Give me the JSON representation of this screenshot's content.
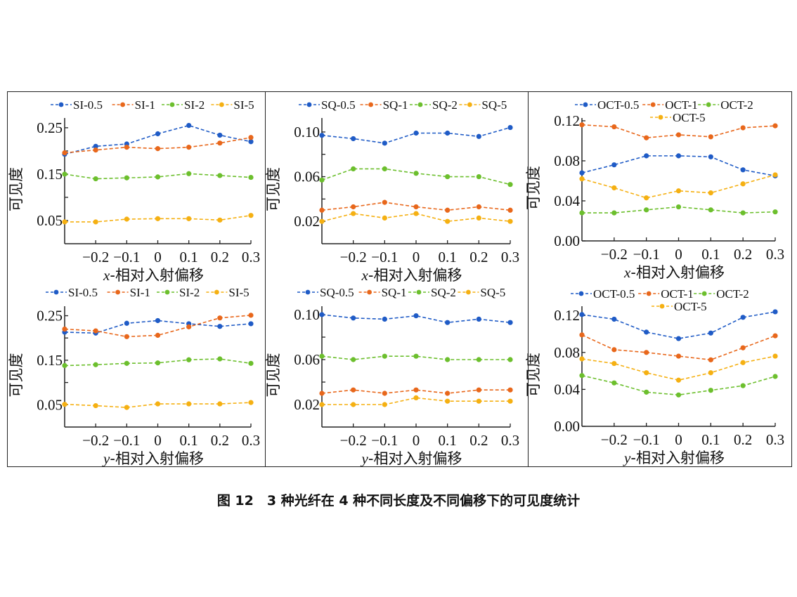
{
  "caption": {
    "figure_label": "图 12",
    "text": "3 种光纤在 4 种不同长度及不同偏移下的可见度统计"
  },
  "colors": {
    "series": [
      "#1f5bc6",
      "#e8671b",
      "#6cbf2d",
      "#f5b012"
    ],
    "axis": "#222222"
  },
  "chart_data": [
    {
      "type": "line",
      "id": "si-x",
      "xlabel": "x-相对入射偏移",
      "xlabel_var": "x",
      "ylabel": "可见度",
      "x": [
        -0.3,
        -0.2,
        -0.1,
        0,
        0.1,
        0.2,
        0.3
      ],
      "xticks": [
        -0.2,
        -0.1,
        0,
        0.1,
        0.2,
        0.3
      ],
      "xtick_labels": [
        "−0.2",
        "−0.1",
        "0",
        "0.1",
        "0.2",
        "0.3"
      ],
      "ylim": [
        0.0,
        0.265
      ],
      "yticks": [
        0.05,
        0.1,
        0.15,
        0.2,
        0.25
      ],
      "ytick_labels": [
        "0.05",
        "",
        "0.15",
        "",
        "0.25"
      ],
      "legend": "top",
      "legend_rows": 1,
      "series": [
        {
          "name": "SI-0.5",
          "values": [
            0.193,
            0.21,
            0.215,
            0.237,
            0.255,
            0.234,
            0.22
          ]
        },
        {
          "name": "SI-1",
          "values": [
            0.196,
            0.202,
            0.208,
            0.205,
            0.208,
            0.217,
            0.229
          ]
        },
        {
          "name": "SI-2",
          "values": [
            0.15,
            0.14,
            0.142,
            0.144,
            0.151,
            0.147,
            0.143
          ]
        },
        {
          "name": "SI-5",
          "values": [
            0.047,
            0.047,
            0.053,
            0.054,
            0.054,
            0.051,
            0.061
          ]
        }
      ]
    },
    {
      "type": "line",
      "id": "sq-x",
      "xlabel": "x-相对入射偏移",
      "xlabel_var": "x",
      "ylabel": "可见度",
      "x": [
        -0.3,
        -0.2,
        -0.1,
        0,
        0.1,
        0.2,
        0.3
      ],
      "xticks": [
        -0.2,
        -0.1,
        0,
        0.1,
        0.2,
        0.3
      ],
      "xtick_labels": [
        "−0.2",
        "−0.1",
        "0",
        "0.1",
        "0.2",
        "0.3"
      ],
      "ylim": [
        0.0,
        0.11
      ],
      "yticks": [
        0.02,
        0.04,
        0.06,
        0.08,
        0.1
      ],
      "ytick_labels": [
        "0.02",
        "",
        "0.06",
        "",
        "0.10"
      ],
      "legend": "top",
      "legend_rows": 1,
      "series": [
        {
          "name": "SQ-0.5",
          "values": [
            0.097,
            0.094,
            0.09,
            0.099,
            0.099,
            0.096,
            0.104
          ]
        },
        {
          "name": "SQ-1",
          "values": [
            0.03,
            0.033,
            0.037,
            0.033,
            0.03,
            0.033,
            0.03
          ]
        },
        {
          "name": "SQ-2",
          "values": [
            0.057,
            0.067,
            0.067,
            0.063,
            0.06,
            0.06,
            0.053
          ]
        },
        {
          "name": "SQ-5",
          "values": [
            0.02,
            0.027,
            0.023,
            0.027,
            0.02,
            0.023,
            0.02
          ]
        }
      ]
    },
    {
      "type": "line",
      "id": "oct-x",
      "xlabel": "x-相对入射偏移",
      "xlabel_var": "x",
      "ylabel": "可见度",
      "x": [
        -0.3,
        -0.2,
        -0.1,
        0,
        0.1,
        0.2,
        0.3
      ],
      "xticks": [
        -0.2,
        -0.1,
        0,
        0.1,
        0.2,
        0.3
      ],
      "xtick_labels": [
        "−0.2",
        "−0.1",
        "0",
        "0.1",
        "0.2",
        "0.3"
      ],
      "ylim": [
        0.0,
        0.12
      ],
      "yticks": [
        0.0,
        0.04,
        0.08,
        0.12
      ],
      "ytick_labels": [
        "0.00",
        "0.04",
        "0.08",
        "0.12"
      ],
      "legend": "top",
      "legend_rows": 2,
      "series": [
        {
          "name": "OCT-0.5",
          "values": [
            0.068,
            0.076,
            0.085,
            0.085,
            0.084,
            0.071,
            0.065
          ]
        },
        {
          "name": "OCT-1",
          "values": [
            0.116,
            0.114,
            0.103,
            0.106,
            0.104,
            0.113,
            0.115
          ]
        },
        {
          "name": "OCT-2",
          "values": [
            0.028,
            0.028,
            0.031,
            0.034,
            0.031,
            0.028,
            0.029
          ]
        },
        {
          "name": "OCT-5",
          "values": [
            0.062,
            0.053,
            0.043,
            0.05,
            0.048,
            0.057,
            0.066
          ]
        }
      ]
    },
    {
      "type": "line",
      "id": "si-y",
      "xlabel": "y-相对入射偏移",
      "xlabel_var": "y",
      "ylabel": "可见度",
      "x": [
        -0.3,
        -0.2,
        -0.1,
        0,
        0.1,
        0.2,
        0.3
      ],
      "xticks": [
        -0.2,
        -0.1,
        0,
        0.1,
        0.2,
        0.3
      ],
      "xtick_labels": [
        "−0.2",
        "−0.1",
        "0",
        "0.1",
        "0.2",
        "0.3"
      ],
      "ylim": [
        0.0,
        0.265
      ],
      "yticks": [
        0.05,
        0.1,
        0.15,
        0.2,
        0.25
      ],
      "ytick_labels": [
        "0.05",
        "",
        "0.15",
        "",
        "0.25"
      ],
      "legend": "top",
      "legend_rows": 1,
      "series": [
        {
          "name": "SI-0.5",
          "values": [
            0.213,
            0.211,
            0.233,
            0.239,
            0.232,
            0.226,
            0.232
          ]
        },
        {
          "name": "SI-1",
          "values": [
            0.22,
            0.216,
            0.203,
            0.206,
            0.225,
            0.245,
            0.251
          ]
        },
        {
          "name": "SI-2",
          "values": [
            0.138,
            0.14,
            0.143,
            0.144,
            0.151,
            0.153,
            0.143
          ]
        },
        {
          "name": "SI-5",
          "values": [
            0.051,
            0.048,
            0.044,
            0.052,
            0.052,
            0.052,
            0.055
          ]
        }
      ]
    },
    {
      "type": "line",
      "id": "sq-y",
      "xlabel": "y-相对入射偏移",
      "xlabel_var": "y",
      "ylabel": "可见度",
      "x": [
        -0.3,
        -0.2,
        -0.1,
        0,
        0.1,
        0.2,
        0.3
      ],
      "xticks": [
        -0.2,
        -0.1,
        0,
        0.1,
        0.2,
        0.3
      ],
      "xtick_labels": [
        "−0.2",
        "−0.1",
        "0",
        "0.1",
        "0.2",
        "0.3"
      ],
      "ylim": [
        0.0,
        0.105
      ],
      "yticks": [
        0.02,
        0.04,
        0.06,
        0.08,
        0.1
      ],
      "ytick_labels": [
        "0.02",
        "",
        "0.06",
        "",
        "0.10"
      ],
      "legend": "top",
      "legend_rows": 1,
      "series": [
        {
          "name": "SQ-0.5",
          "values": [
            0.1,
            0.097,
            0.096,
            0.099,
            0.093,
            0.096,
            0.093
          ]
        },
        {
          "name": "SQ-1",
          "values": [
            0.03,
            0.033,
            0.03,
            0.033,
            0.03,
            0.033,
            0.033
          ]
        },
        {
          "name": "SQ-2",
          "values": [
            0.063,
            0.06,
            0.063,
            0.063,
            0.06,
            0.06,
            0.06
          ]
        },
        {
          "name": "SQ-5",
          "values": [
            0.02,
            0.02,
            0.02,
            0.026,
            0.023,
            0.023,
            0.023
          ]
        }
      ]
    },
    {
      "type": "line",
      "id": "oct-y",
      "xlabel": "y-相对入射偏移",
      "xlabel_var": "y",
      "ylabel": "可见度",
      "x": [
        -0.3,
        -0.2,
        -0.1,
        0,
        0.1,
        0.2,
        0.3
      ],
      "xticks": [
        -0.2,
        -0.1,
        0,
        0.1,
        0.2,
        0.3
      ],
      "xtick_labels": [
        "−0.2",
        "−0.1",
        "0",
        "0.1",
        "0.2",
        "0.3"
      ],
      "ylim": [
        0.0,
        0.127
      ],
      "yticks": [
        0.0,
        0.04,
        0.08,
        0.12
      ],
      "ytick_labels": [
        "0.00",
        "0.04",
        "0.08",
        "0.12"
      ],
      "legend": "top",
      "legend_rows": 2,
      "series": [
        {
          "name": "OCT-0.5",
          "values": [
            0.121,
            0.116,
            0.102,
            0.095,
            0.101,
            0.118,
            0.124
          ]
        },
        {
          "name": "OCT-1",
          "values": [
            0.099,
            0.083,
            0.08,
            0.076,
            0.072,
            0.085,
            0.098
          ]
        },
        {
          "name": "OCT-2",
          "values": [
            0.055,
            0.047,
            0.037,
            0.034,
            0.039,
            0.044,
            0.054
          ]
        },
        {
          "name": "OCT-5",
          "values": [
            0.073,
            0.068,
            0.058,
            0.05,
            0.058,
            0.069,
            0.076
          ]
        }
      ]
    }
  ]
}
